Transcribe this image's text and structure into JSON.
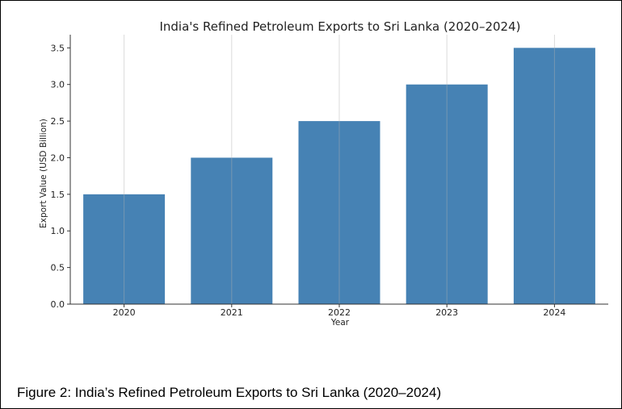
{
  "chart_data": {
    "type": "bar",
    "title": "India's Refined Petroleum Exports to Sri Lanka (2020–2024)",
    "xlabel": "Year",
    "ylabel": "Export Value (USD Billion)",
    "categories": [
      "2020",
      "2021",
      "2022",
      "2023",
      "2024"
    ],
    "values": [
      1.5,
      2.0,
      2.5,
      3.0,
      3.5
    ],
    "ylim": [
      0,
      3.68
    ],
    "yticks": [
      "0.0",
      "0.5",
      "1.0",
      "1.5",
      "2.0",
      "2.5",
      "3.0",
      "3.5"
    ],
    "grid": "vertical",
    "bar_color": "#4682b4"
  },
  "caption": "Figure 2: India’s Refined Petroleum Exports to Sri Lanka (2020–2024)"
}
